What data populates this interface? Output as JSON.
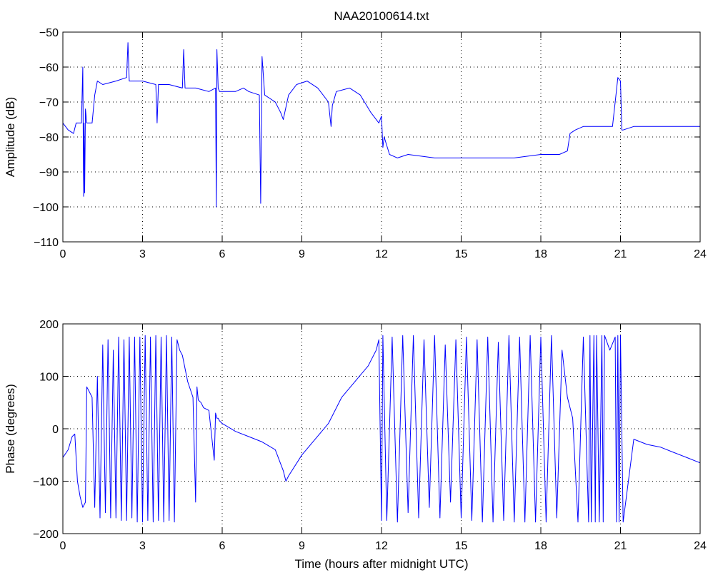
{
  "chart_data": [
    {
      "type": "line",
      "title": "NAA20100614.txt",
      "xlabel": "",
      "ylabel": "Amplitude (dB)",
      "xlim": [
        0,
        24
      ],
      "ylim": [
        -110,
        -50
      ],
      "xticks": [
        0,
        3,
        6,
        9,
        12,
        15,
        18,
        21,
        24
      ],
      "yticks": [
        -50,
        -60,
        -70,
        -80,
        -90,
        -100,
        -110
      ],
      "grid": true,
      "series_color": "#0000ff",
      "series": [
        {
          "name": "",
          "x": [
            0,
            0.2,
            0.4,
            0.5,
            0.7,
            0.75,
            0.78,
            0.8,
            0.82,
            0.85,
            0.9,
            1.0,
            1.1,
            1.2,
            1.3,
            1.5,
            2.0,
            2.4,
            2.45,
            2.5,
            3.0,
            3.5,
            3.55,
            3.6,
            4.0,
            4.5,
            4.55,
            4.6,
            4.7,
            5.0,
            5.5,
            5.75,
            5.78,
            5.8,
            5.85,
            5.9,
            6.0,
            6.5,
            6.8,
            7.0,
            7.4,
            7.45,
            7.5,
            7.6,
            8.0,
            8.2,
            8.3,
            8.5,
            8.8,
            9.2,
            9.6,
            10.0,
            10.1,
            10.15,
            10.3,
            10.8,
            11.2,
            11.6,
            11.9,
            12.0,
            12.05,
            12.1,
            12.3,
            12.6,
            13.0,
            14.0,
            15.0,
            16.0,
            17.0,
            18.0,
            18.7,
            19.0,
            19.1,
            19.3,
            19.6,
            20.0,
            20.5,
            20.7,
            20.8,
            20.9,
            21.0,
            21.05,
            21.1,
            21.5,
            22.0,
            23.0,
            23.5,
            24.0
          ],
          "y": [
            -76,
            -78,
            -79,
            -76,
            -76,
            -60,
            -97,
            -76,
            -96,
            -72,
            -76,
            -76,
            -76,
            -68,
            -64,
            -65,
            -64,
            -63,
            -53,
            -64,
            -64,
            -65,
            -76,
            -65,
            -65,
            -66,
            -55,
            -66,
            -66,
            -66,
            -67,
            -66,
            -100,
            -55,
            -66,
            -67,
            -67,
            -67,
            -66,
            -67,
            -68,
            -99,
            -57,
            -68,
            -70,
            -73,
            -75,
            -68,
            -65,
            -64,
            -66,
            -70,
            -77,
            -71,
            -67,
            -66,
            -68,
            -73,
            -76,
            -74,
            -83,
            -80,
            -85,
            -86,
            -85,
            -86,
            -86,
            -86,
            -86,
            -85,
            -85,
            -84,
            -79,
            -78,
            -77,
            -77,
            -77,
            -77,
            -70,
            -63,
            -64,
            -78,
            -78,
            -77,
            -77,
            -77,
            -77,
            -77
          ]
        }
      ]
    },
    {
      "type": "line",
      "title": "",
      "xlabel": "Time (hours after midnight UTC)",
      "ylabel": "Phase (degrees)",
      "xlim": [
        0,
        24
      ],
      "ylim": [
        -200,
        200
      ],
      "xticks": [
        0,
        3,
        6,
        9,
        12,
        15,
        18,
        21,
        24
      ],
      "yticks": [
        200,
        100,
        0,
        -100,
        -200
      ],
      "grid": true,
      "series_color": "#0000ff",
      "series": [
        {
          "name": "",
          "x": [
            0,
            0.2,
            0.35,
            0.45,
            0.55,
            0.65,
            0.75,
            0.85,
            0.9,
            1.0,
            1.1,
            1.2,
            1.3,
            1.4,
            1.5,
            1.6,
            1.7,
            1.8,
            1.9,
            2.0,
            2.1,
            2.2,
            2.3,
            2.4,
            2.5,
            2.6,
            2.7,
            2.8,
            2.9,
            3.0,
            3.1,
            3.2,
            3.3,
            3.4,
            3.5,
            3.6,
            3.7,
            3.8,
            3.9,
            4.0,
            4.1,
            4.2,
            4.3,
            4.4,
            4.5,
            4.7,
            4.9,
            5.0,
            5.05,
            5.1,
            5.2,
            5.3,
            5.5,
            5.7,
            5.75,
            5.8,
            5.85,
            5.9,
            6.0,
            6.5,
            7.0,
            7.5,
            8.0,
            8.3,
            8.4,
            8.5,
            9.0,
            9.5,
            10.0,
            10.5,
            11.0,
            11.5,
            11.8,
            11.9,
            12.0,
            12.05,
            12.2,
            12.4,
            12.6,
            12.8,
            13.0,
            13.2,
            13.4,
            13.6,
            13.8,
            14.0,
            14.2,
            14.4,
            14.6,
            14.8,
            15.0,
            15.2,
            15.4,
            15.6,
            15.8,
            16.0,
            16.2,
            16.4,
            16.6,
            16.8,
            17.0,
            17.2,
            17.4,
            17.6,
            17.8,
            18.0,
            18.2,
            18.4,
            18.6,
            18.8,
            19.0,
            19.2,
            19.4,
            19.6,
            19.8,
            19.85,
            19.9,
            20.0,
            20.05,
            20.1,
            20.2,
            20.3,
            20.35,
            20.4,
            20.6,
            20.8,
            20.85,
            20.9,
            20.95,
            21.0,
            21.1,
            21.5,
            22.0,
            22.5,
            23.0,
            23.5,
            24.0
          ],
          "y": [
            -55,
            -40,
            -15,
            -10,
            -100,
            -130,
            -150,
            -140,
            80,
            70,
            60,
            -150,
            100,
            -170,
            160,
            -160,
            170,
            -170,
            150,
            -170,
            175,
            -175,
            170,
            -175,
            175,
            -170,
            175,
            -178,
            175,
            -178,
            178,
            -175,
            175,
            -178,
            178,
            -175,
            175,
            -178,
            178,
            -175,
            175,
            -178,
            170,
            150,
            140,
            90,
            60,
            -140,
            80,
            55,
            50,
            40,
            35,
            -60,
            30,
            20,
            20,
            15,
            10,
            -5,
            -15,
            -25,
            -40,
            -80,
            -100,
            -90,
            -50,
            -20,
            10,
            60,
            90,
            120,
            150,
            170,
            -175,
            178,
            -175,
            175,
            -178,
            178,
            -160,
            178,
            -170,
            170,
            -150,
            178,
            -170,
            160,
            -140,
            170,
            -170,
            175,
            -175,
            170,
            -178,
            175,
            -178,
            165,
            -175,
            178,
            -178,
            175,
            -178,
            178,
            -178,
            175,
            -178,
            178,
            -170,
            150,
            60,
            20,
            -178,
            175,
            -178,
            178,
            -178,
            178,
            -178,
            178,
            -178,
            178,
            -178,
            178,
            150,
            175,
            -178,
            178,
            -178,
            178,
            -178,
            -20,
            -30,
            -35,
            -45,
            -55,
            -65
          ]
        }
      ]
    }
  ]
}
